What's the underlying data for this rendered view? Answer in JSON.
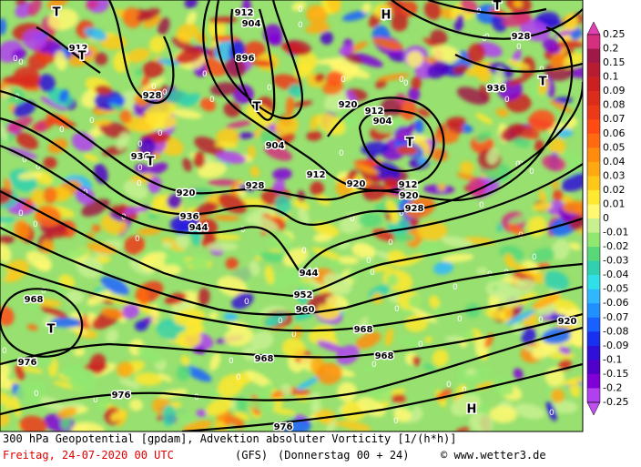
{
  "map": {
    "contour_labels": [
      "912",
      "904",
      "896",
      "928",
      "936",
      "920",
      "912",
      "904",
      "904",
      "912",
      "920",
      "912",
      "920",
      "928",
      "928",
      "920",
      "936",
      "944",
      "928",
      "912",
      "936",
      "944",
      "952",
      "960",
      "968",
      "968",
      "968",
      "968",
      "976",
      "976",
      "976",
      "920"
    ],
    "centers": [
      "T",
      "T",
      "T",
      "T",
      "T",
      "T",
      "T",
      "H",
      "H",
      "T"
    ],
    "zero_label": "0"
  },
  "colorbar": {
    "labels": [
      0.25,
      0.2,
      0.15,
      0.1,
      0.09,
      0.08,
      0.07,
      0.06,
      0.05,
      0.04,
      0.03,
      0.02,
      0.01,
      0,
      -0.01,
      -0.02,
      -0.03,
      -0.04,
      -0.05,
      -0.06,
      -0.07,
      -0.08,
      -0.09,
      -0.1,
      -0.15,
      -0.2,
      -0.25
    ],
    "colors": [
      "#d4307f",
      "#a01848",
      "#b81c30",
      "#cc2020",
      "#dc2c1c",
      "#ec3a18",
      "#ff4a14",
      "#ff6a10",
      "#ff8c0c",
      "#ffa810",
      "#ffc818",
      "#ffe830",
      "#fff870",
      "#c8f090",
      "#90e870",
      "#58d878",
      "#30d0b0",
      "#30e0e8",
      "#30b8ff",
      "#2090ff",
      "#1860ff",
      "#1830f0",
      "#3010d8",
      "#5000c8",
      "#8000d8",
      "#b040f0"
    ],
    "tip_top": "#e040b0",
    "tip_bottom": "#c050f0"
  },
  "footer": {
    "line1": "300 hPa Geopotential [gpdam], Advektion absoluter Vorticity [1/(h*h)]",
    "date": "Freitag, 24-07-2020  00 UTC",
    "model": "(GFS)",
    "run": "(Donnerstag 00 + 24)",
    "source": "© www.wetter3.de"
  }
}
